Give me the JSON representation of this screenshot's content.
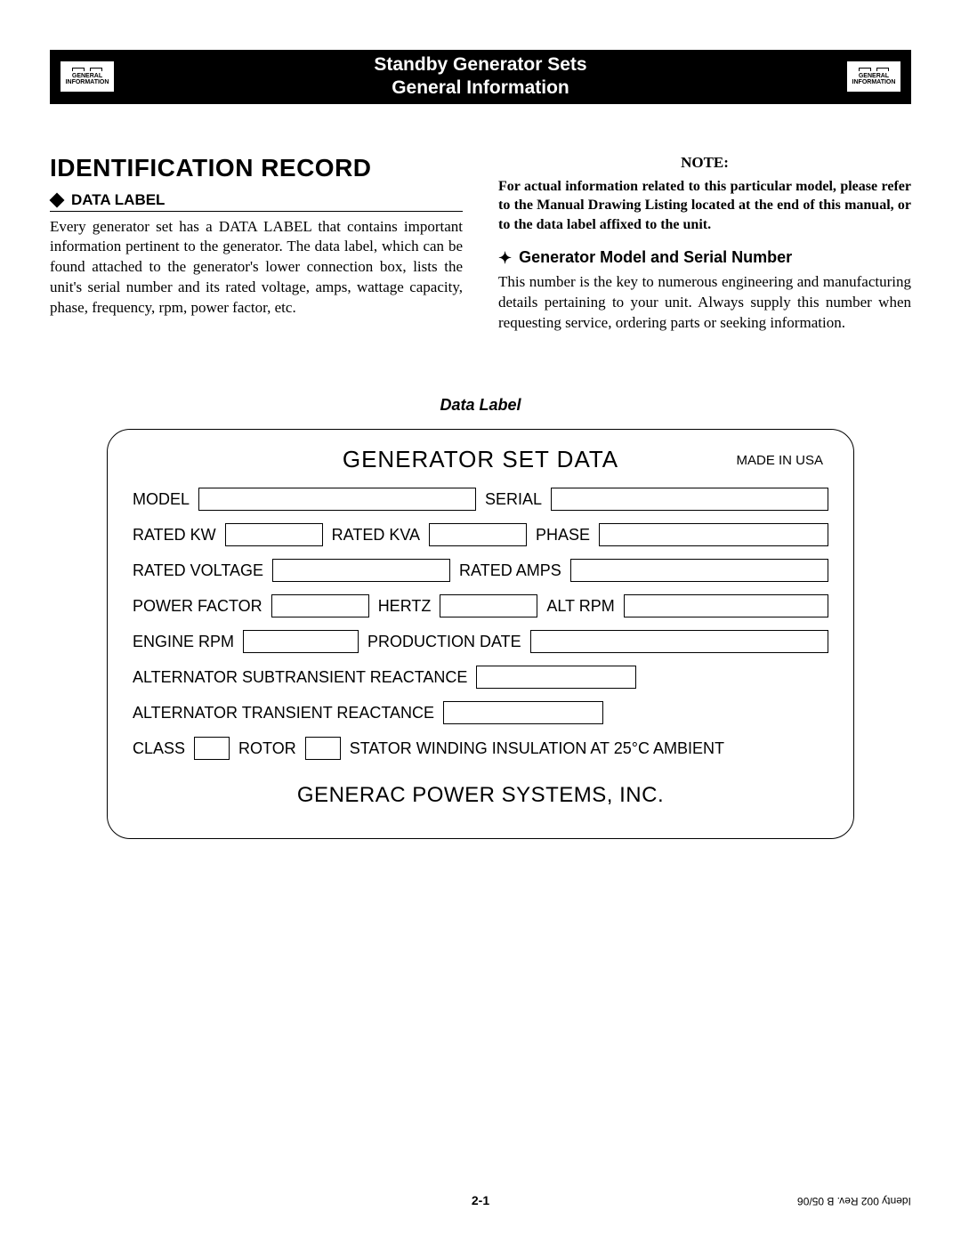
{
  "header": {
    "icon_line1": "GENERAL",
    "icon_line2": "INFORMATION",
    "title_line1": "Standby Generator Sets",
    "title_line2": "General Information"
  },
  "left_col": {
    "main_heading": "IDENTIFICATION RECORD",
    "sub_heading": "DATA LABEL",
    "body": "Every generator set has a DATA LABEL that contains important information pertinent to the generator. The data label, which can be found attached to the generator's lower connection box, lists the unit's serial number and its rated voltage, amps, wattage capacity, phase, frequency, rpm, power factor, etc."
  },
  "right_col": {
    "note_label": "NOTE:",
    "note_body": "For actual information related to this particular model, please refer to the Manual Drawing Listing located at the end of this manual, or to the data label affixed to the unit.",
    "sub_heading": "Generator Model and Serial Number",
    "body": "This number is the key to numerous engineering and manufacturing details pertaining to your unit. Always supply this number when requesting service, ordering parts or seeking information."
  },
  "data_label": {
    "caption": "Data Label",
    "title": "GENERATOR SET DATA",
    "made_in": "MADE IN USA",
    "fields": {
      "model": "MODEL",
      "serial": "SERIAL",
      "rated_kw": "RATED KW",
      "rated_kva": "RATED KVA",
      "phase": "PHASE",
      "rated_voltage": "RATED VOLTAGE",
      "rated_amps": "RATED AMPS",
      "power_factor": "POWER FACTOR",
      "hertz": "HERTZ",
      "alt_rpm": "ALT RPM",
      "engine_rpm": "ENGINE RPM",
      "production_date": "PRODUCTION DATE",
      "alt_sub_react": "ALTERNATOR SUBTRANSIENT REACTANCE",
      "alt_trans_react": "ALTERNATOR TRANSIENT REACTANCE",
      "class": "CLASS",
      "rotor": "ROTOR",
      "stator_winding": "STATOR   WINDING INSULATION AT 25°C AMBIENT"
    },
    "company": "GENERAC POWER SYSTEMS, INC."
  },
  "footer": {
    "page_num": "2-1",
    "rev": "Identy 002  Rev. B  05/06"
  },
  "colors": {
    "header_bg": "#000000",
    "text": "#000000",
    "page_bg": "#ffffff"
  }
}
